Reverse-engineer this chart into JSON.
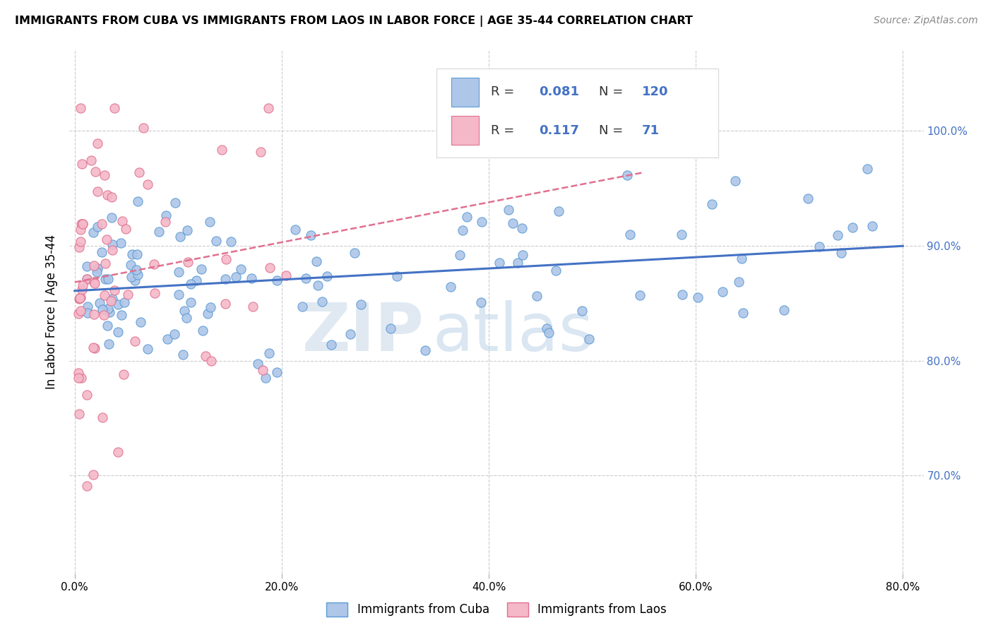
{
  "title": "IMMIGRANTS FROM CUBA VS IMMIGRANTS FROM LAOS IN LABOR FORCE | AGE 35-44 CORRELATION CHART",
  "source": "Source: ZipAtlas.com",
  "ylabel": "In Labor Force | Age 35-44",
  "xlim": [
    -0.005,
    0.82
  ],
  "ylim": [
    0.615,
    1.07
  ],
  "xtick_vals": [
    0.0,
    0.2,
    0.4,
    0.6,
    0.8
  ],
  "ytick_vals": [
    0.7,
    0.8,
    0.9,
    1.0
  ],
  "cuba_color": "#aec6e8",
  "cuba_edge_color": "#5b9bd5",
  "laos_color": "#f4b8c8",
  "laos_edge_color": "#e07090",
  "cuba_R": 0.081,
  "cuba_N": 120,
  "laos_R": 0.117,
  "laos_N": 71,
  "trend_cuba_color": "#4472c4",
  "trend_laos_color": "#e07090",
  "watermark_zip": "ZIP",
  "watermark_atlas": "atlas",
  "background_color": "#ffffff",
  "grid_color": "#cccccc",
  "right_axis_color": "#4472c4",
  "legend_text_color": "#333333"
}
